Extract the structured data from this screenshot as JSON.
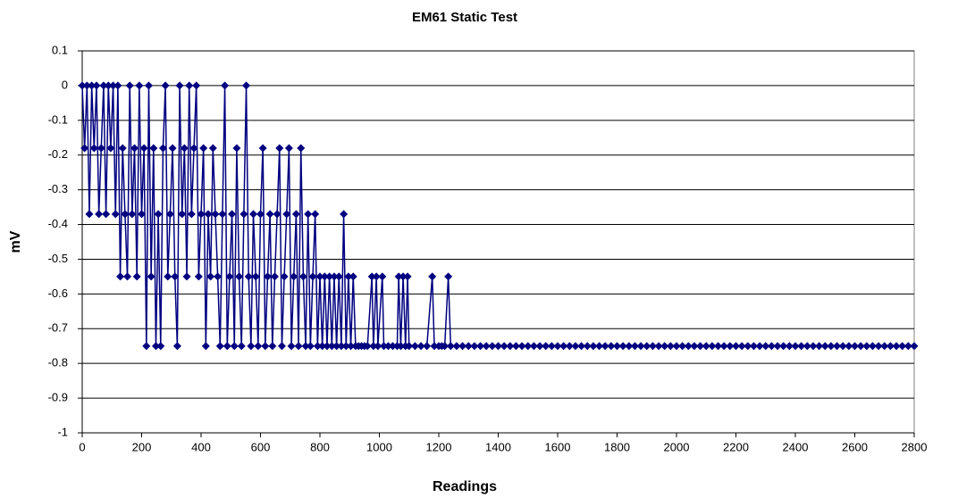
{
  "chart_data": {
    "type": "line",
    "title": "EM61 Static Test",
    "x_label": "Readings",
    "y_label": "mV",
    "color": "#000080",
    "markers": true,
    "grid": true,
    "xlim": [
      0,
      2800
    ],
    "xticks": [
      0,
      200,
      400,
      600,
      800,
      1000,
      1200,
      1400,
      1600,
      1800,
      2000,
      2200,
      2400,
      2600,
      2800
    ],
    "ylim": [
      -1,
      0.1
    ],
    "yticks": [
      -1,
      -0.9,
      -0.8,
      -0.7,
      -0.6,
      -0.5,
      -0.4,
      -0.3,
      -0.2,
      -0.1,
      0,
      0.1
    ],
    "x": [
      0,
      8,
      16,
      24,
      32,
      40,
      48,
      56,
      64,
      72,
      80,
      88,
      96,
      104,
      112,
      120,
      128,
      136,
      144,
      152,
      160,
      168,
      176,
      184,
      192,
      200,
      208,
      216,
      224,
      232,
      240,
      248,
      256,
      264,
      272,
      280,
      288,
      296,
      304,
      312,
      320,
      328,
      336,
      344,
      352,
      360,
      368,
      376,
      384,
      392,
      400,
      408,
      416,
      424,
      432,
      440,
      448,
      456,
      464,
      472,
      480,
      488,
      496,
      504,
      512,
      520,
      528,
      536,
      544,
      552,
      560,
      568,
      576,
      584,
      592,
      600,
      608,
      616,
      624,
      632,
      640,
      648,
      656,
      664,
      672,
      680,
      688,
      696,
      704,
      712,
      720,
      728,
      736,
      744,
      752,
      760,
      768,
      776,
      784,
      792,
      800,
      808,
      816,
      824,
      832,
      840,
      848,
      856,
      864,
      872,
      880,
      888,
      896,
      904,
      912,
      920,
      930,
      940,
      950,
      960,
      975,
      980,
      990,
      995,
      1010,
      1015,
      1030,
      1045,
      1060,
      1065,
      1072,
      1080,
      1088,
      1095,
      1100,
      1120,
      1140,
      1160,
      1178,
      1185,
      1200,
      1210,
      1220,
      1232,
      1240,
      1260,
      1280,
      1300,
      1320,
      1340,
      1360,
      1380,
      1400,
      1420,
      1440,
      1460,
      1480,
      1500,
      1520,
      1540,
      1560,
      1580,
      1600,
      1620,
      1640,
      1660,
      1680,
      1700,
      1720,
      1740,
      1760,
      1780,
      1800,
      1820,
      1840,
      1860,
      1880,
      1900,
      1920,
      1940,
      1960,
      1980,
      2000,
      2020,
      2040,
      2060,
      2080,
      2100,
      2120,
      2140,
      2160,
      2180,
      2200,
      2220,
      2240,
      2260,
      2280,
      2300,
      2320,
      2340,
      2360,
      2380,
      2400,
      2420,
      2440,
      2460,
      2480,
      2500,
      2520,
      2540,
      2560,
      2580,
      2600,
      2620,
      2640,
      2660,
      2680,
      2700,
      2720,
      2740,
      2760,
      2780,
      2800
    ],
    "values": [
      0,
      -0.18,
      0,
      -0.37,
      0,
      -0.18,
      0,
      -0.37,
      -0.18,
      0,
      -0.37,
      0,
      -0.18,
      0,
      -0.37,
      0,
      -0.55,
      -0.18,
      -0.37,
      -0.55,
      0,
      -0.37,
      -0.18,
      -0.55,
      0,
      -0.37,
      -0.18,
      -0.75,
      0,
      -0.55,
      -0.18,
      -0.75,
      -0.37,
      -0.75,
      -0.18,
      0,
      -0.55,
      -0.37,
      -0.18,
      -0.55,
      -0.75,
      0,
      -0.37,
      -0.18,
      -0.55,
      0,
      -0.37,
      -0.18,
      0,
      -0.55,
      -0.37,
      -0.18,
      -0.75,
      -0.37,
      -0.55,
      -0.18,
      -0.37,
      -0.55,
      -0.75,
      -0.37,
      0,
      -0.75,
      -0.55,
      -0.37,
      -0.75,
      -0.18,
      -0.55,
      -0.75,
      -0.37,
      0,
      -0.55,
      -0.75,
      -0.37,
      -0.55,
      -0.75,
      -0.37,
      -0.18,
      -0.75,
      -0.55,
      -0.37,
      -0.75,
      -0.55,
      -0.37,
      -0.18,
      -0.75,
      -0.55,
      -0.37,
      -0.18,
      -0.75,
      -0.55,
      -0.37,
      -0.75,
      -0.18,
      -0.55,
      -0.75,
      -0.37,
      -0.75,
      -0.55,
      -0.37,
      -0.75,
      -0.55,
      -0.75,
      -0.55,
      -0.75,
      -0.55,
      -0.75,
      -0.55,
      -0.75,
      -0.55,
      -0.75,
      -0.37,
      -0.75,
      -0.55,
      -0.75,
      -0.55,
      -0.75,
      -0.75,
      -0.75,
      -0.75,
      -0.75,
      -0.55,
      -0.75,
      -0.55,
      -0.75,
      -0.55,
      -0.75,
      -0.75,
      -0.75,
      -0.75,
      -0.55,
      -0.75,
      -0.55,
      -0.75,
      -0.55,
      -0.75,
      -0.75,
      -0.75,
      -0.75,
      -0.55,
      -0.75,
      -0.75,
      -0.75,
      -0.75,
      -0.55,
      -0.75,
      -0.75,
      -0.75,
      -0.75,
      -0.75,
      -0.75,
      -0.75,
      -0.75,
      -0.75,
      -0.75,
      -0.75,
      -0.75,
      -0.75,
      -0.75,
      -0.75,
      -0.75,
      -0.75,
      -0.75,
      -0.75,
      -0.75,
      -0.75,
      -0.75,
      -0.75,
      -0.75,
      -0.75,
      -0.75,
      -0.75,
      -0.75,
      -0.75,
      -0.75,
      -0.75,
      -0.75,
      -0.75,
      -0.75,
      -0.75,
      -0.75,
      -0.75,
      -0.75,
      -0.75,
      -0.75,
      -0.75,
      -0.75,
      -0.75,
      -0.75,
      -0.75,
      -0.75,
      -0.75,
      -0.75,
      -0.75,
      -0.75,
      -0.75,
      -0.75,
      -0.75,
      -0.75,
      -0.75,
      -0.75,
      -0.75,
      -0.75,
      -0.75,
      -0.75,
      -0.75,
      -0.75,
      -0.75,
      -0.75,
      -0.75,
      -0.75,
      -0.75,
      -0.75,
      -0.75,
      -0.75,
      -0.75,
      -0.75,
      -0.75,
      -0.75,
      -0.75,
      -0.75,
      -0.75,
      -0.75,
      -0.75
    ]
  }
}
